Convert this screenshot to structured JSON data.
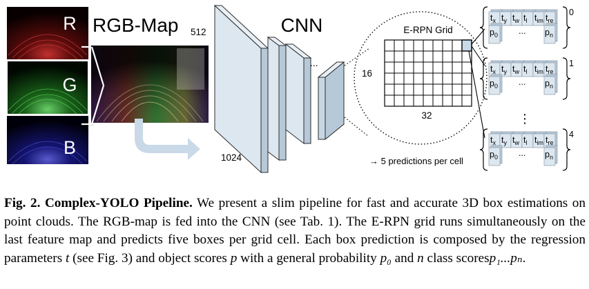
{
  "figure": {
    "channels": [
      {
        "label": "R",
        "color": "#d21e1e"
      },
      {
        "label": "G",
        "color": "#2db82d"
      },
      {
        "label": "B",
        "color": "#2a2ad2"
      }
    ],
    "rgb_map_title": "RGB-Map",
    "dim_512": "512",
    "dim_1024": "1024",
    "cnn_title": "CNN",
    "cnn_dots": "...",
    "grid_title": "E-RPN Grid",
    "grid_rows_label": "16",
    "grid_cols_label": "32",
    "predictions_note": "→ 5 predictions per cell",
    "prediction_groups": [
      {
        "index": "0"
      },
      {
        "index": "1"
      },
      {
        "index": "4"
      }
    ],
    "vector_top_cells": [
      {
        "base": "t",
        "sub": "x"
      },
      {
        "base": "t",
        "sub": "y"
      },
      {
        "base": "t",
        "sub": "w"
      },
      {
        "base": "t",
        "sub": "l"
      },
      {
        "base": "t",
        "sub": "im"
      },
      {
        "base": "t",
        "sub": "re"
      }
    ],
    "vector_bottom": {
      "first": {
        "base": "p",
        "sub": "0"
      },
      "ellipsis": "...",
      "last": {
        "base": "p",
        "sub": "n"
      }
    },
    "vertical_ellipsis": "⋮",
    "colors": {
      "block_fill": "#dce7f0",
      "block_side": "#b7c9d8",
      "arrow": "#c9d9e8",
      "edge": "#2b2b2b"
    }
  },
  "caption": {
    "label": "Fig. 2.",
    "title": "Complex-YOLO Pipeline.",
    "text_1": "We present a slim pipeline for fast and accurate 3D box estimations on point clouds. The RGB-map is fed into the CNN (see Tab. 1). The E-RPN grid runs simultaneously on the last feature map and predicts five boxes per grid cell. Each box prediction is composed by the regression parameters",
    "var_t": "t",
    "text_2": "(see Fig. 3) and object scores",
    "var_p": "p",
    "text_3": "with a general probability",
    "var_p0": "p₀",
    "text_4": "and",
    "var_n": "n",
    "text_5": "class scores",
    "var_range": "p₁...pₙ",
    "text_6": "."
  }
}
